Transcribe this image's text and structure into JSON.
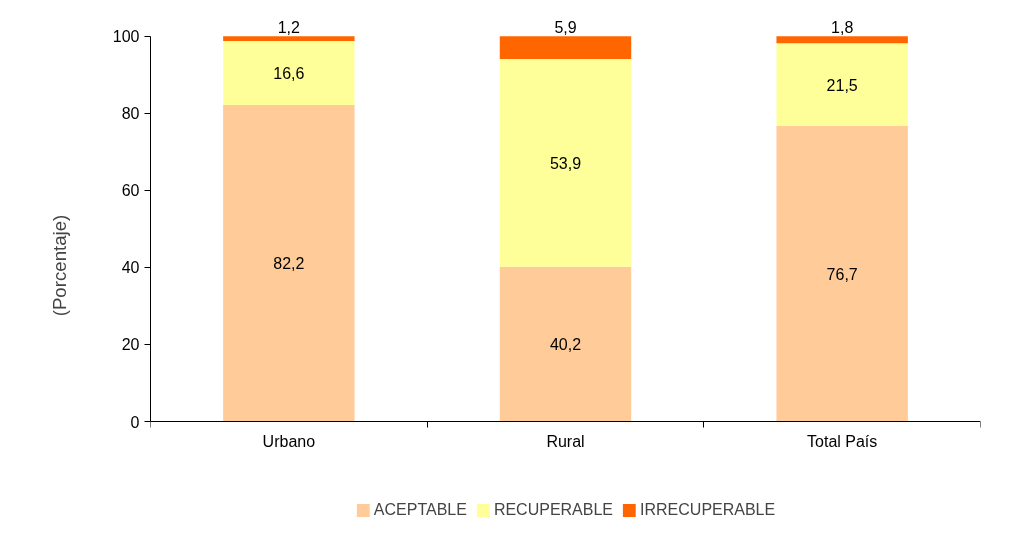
{
  "chart_data": {
    "type": "bar",
    "stacked": true,
    "categories": [
      "Urbano",
      "Rural",
      "Total País"
    ],
    "ylabel": "(Porcentaje)",
    "ylim": [
      0,
      100
    ],
    "yticks": [
      0,
      20,
      40,
      60,
      80,
      100
    ],
    "grid": false,
    "legend": "bottom",
    "series": [
      {
        "name": "ACEPTABLE",
        "color": "#ffcc99",
        "values": [
          82.2,
          40.2,
          76.7
        ],
        "value_labels": [
          "82,2",
          "40,2",
          "76,7"
        ]
      },
      {
        "name": "RECUPERABLE",
        "color": "#ffff99",
        "values": [
          16.6,
          53.9,
          21.5
        ],
        "value_labels": [
          "16,6",
          "53,9",
          "21,5"
        ]
      },
      {
        "name": "IRRECUPERABLE",
        "color": "#ff6600",
        "values": [
          1.2,
          5.9,
          1.8
        ],
        "value_labels": [
          "1,2",
          "5,9",
          "1,8"
        ]
      }
    ]
  }
}
